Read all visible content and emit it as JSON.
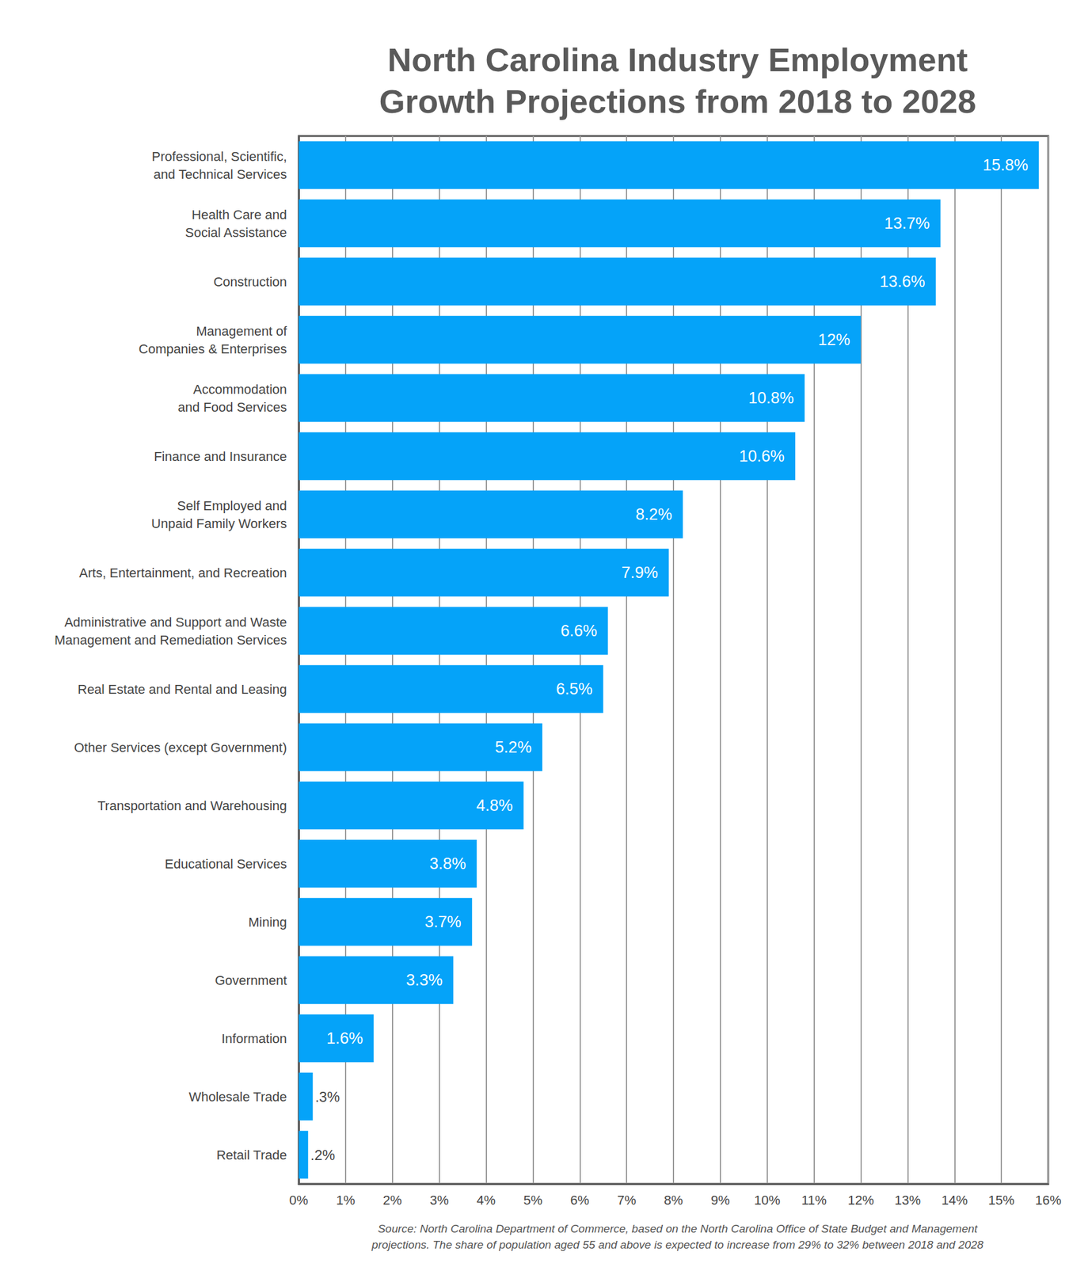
{
  "chart_data": {
    "type": "bar",
    "orientation": "horizontal",
    "title": "North Carolina Industry Employment\nGrowth Projections from 2018 to 2028",
    "annotation": "Source: North Carolina Department of Commerce, based on the North Carolina Office of State Budget and Management\nprojections. The share of population aged 55 and above is expected to increase from 29% to 32% between 2018 and 2028",
    "categories": [
      "Professional, Scientific,\nand Technical Services",
      "Health Care and\nSocial Assistance",
      "Construction",
      "Management of\nCompanies & Enterprises",
      "Accommodation\nand Food Services",
      "Finance and Insurance",
      "Self Employed and\nUnpaid Family Workers",
      "Arts, Entertainment, and Recreation",
      "Administrative and Support and Waste\nManagement and Remediation Services",
      "Real Estate and Rental and Leasing",
      "Other Services (except Government)",
      "Transportation and Warehousing",
      "Educational Services",
      "Mining",
      "Government",
      "Information",
      "Wholesale Trade",
      "Retail Trade"
    ],
    "values": [
      15.8,
      13.7,
      13.6,
      12,
      10.8,
      10.6,
      8.2,
      7.9,
      6.6,
      6.5,
      5.2,
      4.8,
      3.8,
      3.7,
      3.3,
      1.6,
      0.3,
      0.2
    ],
    "value_labels": [
      "15.8%",
      "13.7%",
      "13.6%",
      "12%",
      "10.8%",
      "10.6%",
      "8.2%",
      "7.9%",
      "6.6%",
      "6.5%",
      "5.2%",
      "4.8%",
      "3.8%",
      "3.7%",
      "3.3%",
      "1.6%",
      ".3%",
      ".2%"
    ],
    "color": "#05a3f9",
    "data_labels": true,
    "grid": true,
    "xlim": [
      0,
      16
    ],
    "xticks": [
      {
        "value": 0,
        "label": "0%"
      },
      {
        "value": 1,
        "label": "1%"
      },
      {
        "value": 2,
        "label": "2%"
      },
      {
        "value": 3,
        "label": "3%"
      },
      {
        "value": 4,
        "label": "4%"
      },
      {
        "value": 5,
        "label": "5%"
      },
      {
        "value": 6,
        "label": "6%"
      },
      {
        "value": 7,
        "label": "7%"
      },
      {
        "value": 8,
        "label": "8%"
      },
      {
        "value": 9,
        "label": "9%"
      },
      {
        "value": 10,
        "label": "10%"
      },
      {
        "value": 11,
        "label": "11%"
      },
      {
        "value": 12,
        "label": "12%"
      },
      {
        "value": 13,
        "label": "13%"
      },
      {
        "value": 14,
        "label": "14%"
      },
      {
        "value": 15,
        "label": "15%"
      },
      {
        "value": 16,
        "label": "16%"
      }
    ]
  }
}
